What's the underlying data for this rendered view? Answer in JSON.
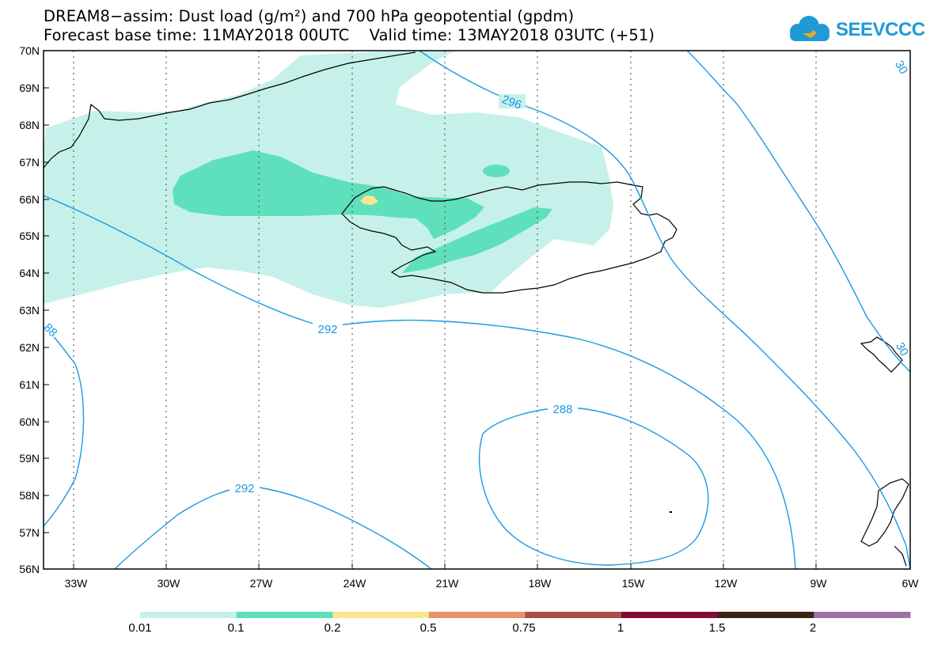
{
  "title_line1": "DREAM8−assim: Dust load (g/m²) and 700 hPa geopotential (gpdm)",
  "title_line2": "Forecast base time: 11MAY2018 00UTC    Valid time: 13MAY2018 03UTC (+51)",
  "logo": {
    "text": "SEEVCCC",
    "icon": "cloud-icon",
    "color": "#1f9ad6"
  },
  "lat_labels": [
    "70N",
    "69N",
    "68N",
    "67N",
    "66N",
    "65N",
    "64N",
    "63N",
    "62N",
    "61N",
    "60N",
    "59N",
    "58N",
    "57N",
    "56N"
  ],
  "lon_labels": [
    "33W",
    "30W",
    "27W",
    "24W",
    "21W",
    "18W",
    "15W",
    "12W",
    "9W",
    "6W"
  ],
  "contour_labels": {
    "c296": "296",
    "c292a": "292",
    "c292b": "292",
    "c288": "288",
    "c88": "88",
    "c30a": "30",
    "c30b": "30"
  },
  "colorbar": {
    "colors": [
      "#c6f1ea",
      "#5fe0bc",
      "#fae68c",
      "#e8926a",
      "#a84e4a",
      "#820b32",
      "#3a2412",
      "#9c73a4"
    ],
    "labels": [
      "0.01",
      "0.1",
      "0.2",
      "0.5",
      "0.75",
      "1",
      "1.5",
      "2"
    ]
  },
  "contour_color": "#1a9ae0"
}
